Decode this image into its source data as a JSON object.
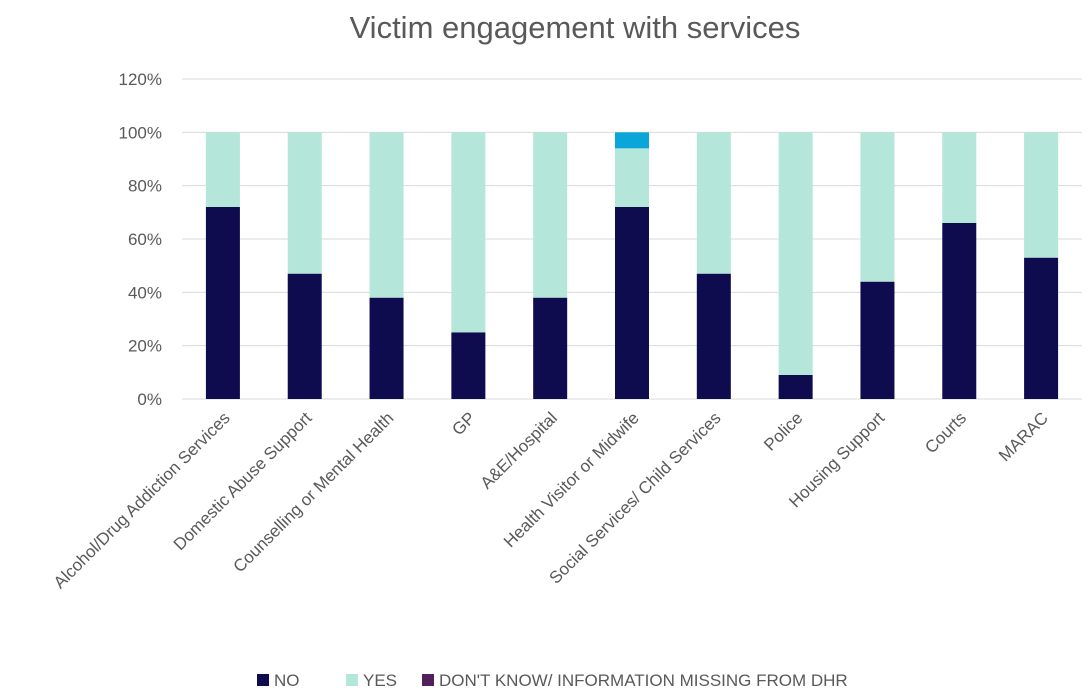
{
  "chart_data": {
    "type": "bar",
    "stacked": true,
    "title": "Victim engagement with services",
    "xlabel": "",
    "ylabel": "",
    "ylim": [
      0,
      1.2
    ],
    "y_ticks": [
      "0%",
      "20%",
      "40%",
      "60%",
      "80%",
      "100%",
      "120%"
    ],
    "grid": true,
    "legend_position": "bottom",
    "categories": [
      "Alcohol/Drug Addiction Services",
      "Domestic Abuse Support",
      "Counselling or Mental Health",
      "GP",
      "A&E/Hospital",
      "Health Visitor or Midwife",
      "Social Services/ Child Services",
      "Police",
      "Housing Support",
      "Courts",
      "MARAC"
    ],
    "series": [
      {
        "name": "NO",
        "color": "#0e0b4f",
        "values": [
          0.72,
          0.47,
          0.38,
          0.25,
          0.38,
          0.72,
          0.47,
          0.09,
          0.44,
          0.66,
          0.53
        ]
      },
      {
        "name": "YES",
        "color": "#b5e6da",
        "values": [
          0.28,
          0.53,
          0.62,
          0.75,
          0.62,
          0.22,
          0.53,
          0.91,
          0.56,
          0.34,
          0.47
        ]
      },
      {
        "name": "DON'T KNOW/ INFORMATION MISSING FROM DHR",
        "color": "#52205e",
        "values": [
          0,
          0,
          0,
          0,
          0,
          0,
          0,
          0,
          0,
          0,
          0
        ]
      },
      {
        "name": "",
        "color": "#0aa5d9",
        "values": [
          0,
          0,
          0,
          0,
          0,
          0.06,
          0,
          0,
          0,
          0,
          0
        ]
      }
    ],
    "legend_series": [
      0,
      1,
      2
    ]
  }
}
